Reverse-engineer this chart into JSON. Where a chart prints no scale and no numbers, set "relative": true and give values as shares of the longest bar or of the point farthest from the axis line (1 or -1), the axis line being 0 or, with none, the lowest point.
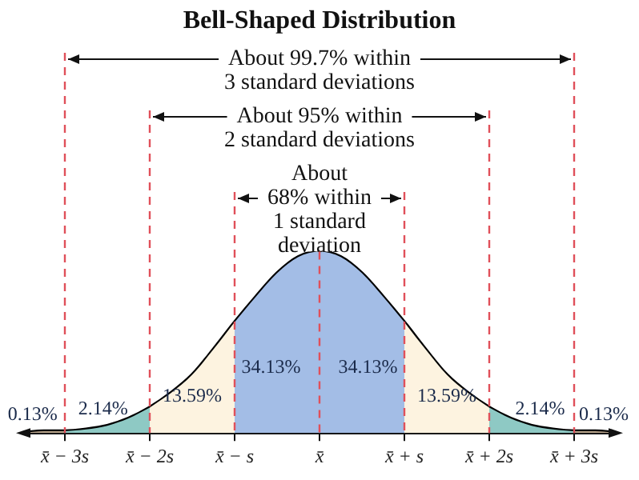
{
  "chart_data": {
    "type": "area",
    "title": "Bell-Shaped Distribution",
    "relative": true,
    "legend": false,
    "grid": false,
    "tick_labels": "x",
    "marker": "none",
    "xlim": [
      -3.5,
      3.5
    ],
    "xticks": [
      {
        "value": -3,
        "label": "x̄ − 3s"
      },
      {
        "value": -2,
        "label": "x̄ − 2s"
      },
      {
        "value": -1,
        "label": "x̄ − s"
      },
      {
        "value": 0,
        "label": "x̄"
      },
      {
        "value": 1,
        "label": "x̄ + s"
      },
      {
        "value": 2,
        "label": "x̄ + 2s"
      },
      {
        "value": 3,
        "label": "x̄ + 3s"
      }
    ],
    "series": [
      {
        "type": "area",
        "color": "#b8a48c",
        "x": [
          -3.5,
          -3.25,
          -3
        ],
        "values": [
          0,
          0.01,
          0.01
        ]
      },
      {
        "type": "area",
        "color": "#8ec9c4",
        "x": [
          -3,
          -2.75,
          -2.5,
          -2.25,
          -2
        ],
        "values": [
          0.01,
          0.02,
          0.04,
          0.08,
          0.14
        ]
      },
      {
        "type": "area",
        "color": "#fdf3e0",
        "x": [
          -2,
          -1.75,
          -1.5,
          -1.25,
          -1
        ],
        "values": [
          0.14,
          0.22,
          0.32,
          0.46,
          0.61
        ]
      },
      {
        "type": "area",
        "color": "#a3bde6",
        "x": [
          -1,
          -0.75,
          -0.5,
          -0.25,
          0,
          0.25,
          0.5,
          0.75,
          1
        ],
        "values": [
          0.61,
          0.75,
          0.88,
          0.97,
          1,
          0.97,
          0.88,
          0.75,
          0.61
        ]
      },
      {
        "type": "area",
        "color": "#fdf3e0",
        "x": [
          1,
          1.25,
          1.5,
          1.75,
          2
        ],
        "values": [
          0.61,
          0.46,
          0.32,
          0.22,
          0.14
        ]
      },
      {
        "type": "area",
        "color": "#8ec9c4",
        "x": [
          2,
          2.25,
          2.5,
          2.75,
          3
        ],
        "values": [
          0.14,
          0.08,
          0.04,
          0.02,
          0.01
        ]
      },
      {
        "type": "area",
        "color": "#b8a48c",
        "x": [
          3,
          3.25,
          3.5
        ],
        "values": [
          0.01,
          0.01,
          0
        ]
      },
      {
        "type": "line",
        "color": "#000000",
        "line_style": "solid",
        "x": [
          -3.5,
          -3.25,
          -3,
          -2.75,
          -2.5,
          -2.25,
          -2,
          -1.75,
          -1.5,
          -1.25,
          -1,
          -0.75,
          -0.5,
          -0.25,
          0,
          0.25,
          0.5,
          0.75,
          1,
          1.25,
          1.5,
          1.75,
          2,
          2.25,
          2.5,
          2.75,
          3,
          3.25,
          3.5
        ],
        "values": [
          0,
          0.01,
          0.01,
          0.02,
          0.04,
          0.08,
          0.14,
          0.22,
          0.32,
          0.46,
          0.61,
          0.75,
          0.88,
          0.97,
          1,
          0.97,
          0.88,
          0.75,
          0.61,
          0.46,
          0.32,
          0.22,
          0.14,
          0.08,
          0.04,
          0.02,
          0.01,
          0.01,
          0
        ]
      }
    ],
    "ref_lines": [
      {
        "axis": "x",
        "value": -3,
        "color": "#e0505a",
        "line_style": "dashed"
      },
      {
        "axis": "x",
        "value": -2,
        "color": "#e0505a",
        "line_style": "dashed"
      },
      {
        "axis": "x",
        "value": -1,
        "color": "#e0505a",
        "line_style": "dashed"
      },
      {
        "axis": "x",
        "value": 0,
        "color": "#e0505a",
        "line_style": "dashed"
      },
      {
        "axis": "x",
        "value": 1,
        "color": "#e0505a",
        "line_style": "dashed"
      },
      {
        "axis": "x",
        "value": 2,
        "color": "#e0505a",
        "line_style": "dashed"
      },
      {
        "axis": "x",
        "value": 3,
        "color": "#e0505a",
        "line_style": "dashed"
      }
    ],
    "annotations": [
      "About 99.7% within\n3 standard deviations",
      "About 95% within\n2 standard deviations",
      "About\n68% within\n1 standard\ndeviation",
      "34.13%",
      "34.13%",
      "13.59%",
      "13.59%",
      "2.14%",
      "2.14%",
      "0.13%",
      "0.13%"
    ]
  }
}
